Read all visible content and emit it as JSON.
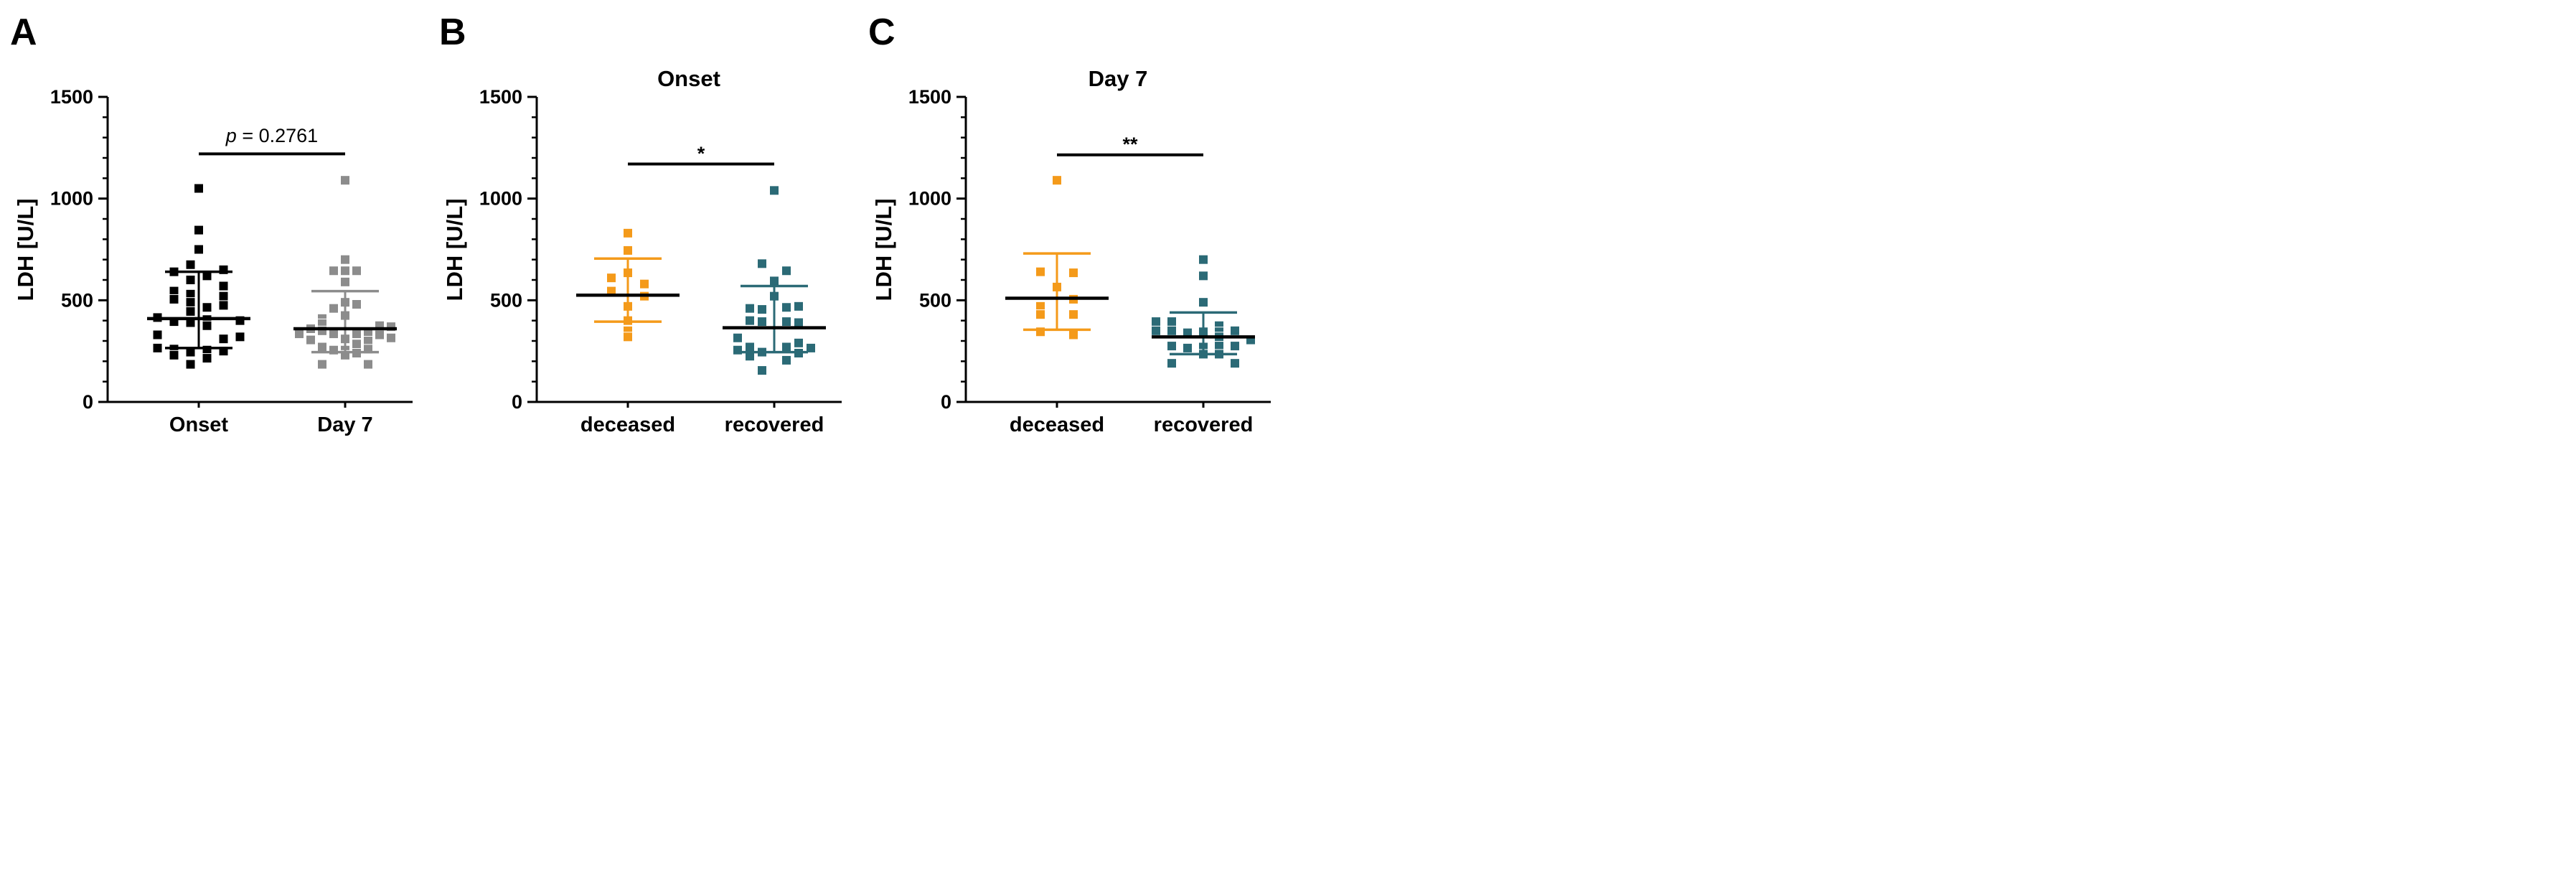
{
  "figure": {
    "background": "#ffffff",
    "axis_color": "#000000",
    "marker_colors": {
      "black": "#000000",
      "gray": "#8C8C8C",
      "orange": "#F49A1A",
      "teal": "#2B6A76"
    }
  },
  "chart_data": [
    {
      "type": "scatter",
      "label": "A",
      "title": "",
      "ylabel": "LDH [U/L]",
      "xlabel": "",
      "ylim": [
        0,
        1500
      ],
      "yticks": [
        0,
        500,
        1000,
        1500
      ],
      "minor_tick_step": 100,
      "grid": false,
      "legend": "none",
      "categories": [
        "Onset",
        "Day 7"
      ],
      "significance": {
        "prefix": "p",
        "text": " = 0.2761",
        "kind": "pvalue",
        "bar_value": 1220,
        "text_value": 1310
      },
      "groups": [
        {
          "name": "Onset",
          "color": "#000000",
          "line_color": "#000000",
          "median_color": "#000000",
          "median": 410,
          "q1": 265,
          "q3": 640,
          "step": 23,
          "points": [
            [
              1050,
              0
            ],
            [
              845,
              0
            ],
            [
              750,
              0
            ],
            [
              675,
              -0.5
            ],
            [
              650,
              1.5
            ],
            [
              640,
              -1.5
            ],
            [
              620,
              0.5
            ],
            [
              600,
              -0.5
            ],
            [
              570,
              1.5
            ],
            [
              545,
              -1.5
            ],
            [
              530,
              -0.5
            ],
            [
              520,
              1.5
            ],
            [
              505,
              -1.5
            ],
            [
              490,
              -0.5
            ],
            [
              475,
              1.5
            ],
            [
              465,
              0.5
            ],
            [
              445,
              -0.5
            ],
            [
              415,
              -2.5
            ],
            [
              405,
              0.5
            ],
            [
              400,
              2.5
            ],
            [
              395,
              -1.5
            ],
            [
              390,
              -0.5
            ],
            [
              375,
              0.5
            ],
            [
              330,
              -2.5
            ],
            [
              320,
              2.5
            ],
            [
              310,
              1.5
            ],
            [
              265,
              -2.5
            ],
            [
              260,
              -1.5
            ],
            [
              255,
              0.5
            ],
            [
              250,
              1.5
            ],
            [
              245,
              -0.5
            ],
            [
              230,
              -1.5
            ],
            [
              215,
              0.5
            ],
            [
              185,
              -0.5
            ]
          ]
        },
        {
          "name": "Day 7",
          "color": "#8C8C8C",
          "line_color": "#8C8C8C",
          "median_color": "#000000",
          "median": 360,
          "q1": 245,
          "q3": 545,
          "step": 16,
          "points": [
            [
              1090,
              0
            ],
            [
              700,
              0
            ],
            [
              645,
              -1
            ],
            [
              645,
              0
            ],
            [
              645,
              1
            ],
            [
              590,
              0
            ],
            [
              490,
              0
            ],
            [
              480,
              1
            ],
            [
              460,
              -1
            ],
            [
              425,
              0
            ],
            [
              410,
              -2
            ],
            [
              385,
              -2
            ],
            [
              375,
              3
            ],
            [
              370,
              4
            ],
            [
              360,
              -3
            ],
            [
              350,
              -2
            ],
            [
              345,
              2
            ],
            [
              335,
              -4
            ],
            [
              335,
              -1
            ],
            [
              335,
              1
            ],
            [
              330,
              3
            ],
            [
              315,
              4
            ],
            [
              310,
              0
            ],
            [
              305,
              -3
            ],
            [
              300,
              2
            ],
            [
              285,
              1
            ],
            [
              270,
              -2
            ],
            [
              260,
              2
            ],
            [
              255,
              -1
            ],
            [
              255,
              0
            ],
            [
              240,
              1
            ],
            [
              230,
              0
            ],
            [
              185,
              -2
            ],
            [
              185,
              2
            ]
          ]
        }
      ]
    },
    {
      "type": "scatter",
      "label": "B",
      "title": "Onset",
      "ylabel": "LDH [U/L]",
      "xlabel": "",
      "ylim": [
        0,
        1500
      ],
      "yticks": [
        0,
        500,
        1000,
        1500
      ],
      "minor_tick_step": 100,
      "grid": false,
      "legend": "none",
      "categories": [
        "deceased",
        "recovered"
      ],
      "significance": {
        "prefix": "",
        "text": "*",
        "kind": "stars",
        "bar_value": 1170,
        "text_value": 1245
      },
      "groups": [
        {
          "name": "deceased",
          "color": "#F49A1A",
          "line_color": "#F49A1A",
          "median_color": "#000000",
          "median": 525,
          "q1": 395,
          "q3": 705,
          "step": 23,
          "points": [
            [
              830,
              0
            ],
            [
              745,
              0
            ],
            [
              635,
              0
            ],
            [
              610,
              -1
            ],
            [
              580,
              1
            ],
            [
              545,
              -1
            ],
            [
              520,
              1
            ],
            [
              470,
              0
            ],
            [
              400,
              0
            ],
            [
              350,
              0
            ],
            [
              320,
              0
            ]
          ]
        },
        {
          "name": "recovered",
          "color": "#2B6A76",
          "line_color": "#2B6A76",
          "median_color": "#000000",
          "median": 365,
          "q1": 245,
          "q3": 570,
          "step": 17,
          "points": [
            [
              1040,
              0
            ],
            [
              680,
              -1
            ],
            [
              645,
              1
            ],
            [
              595,
              0
            ],
            [
              520,
              0
            ],
            [
              460,
              -2
            ],
            [
              455,
              -1
            ],
            [
              465,
              1
            ],
            [
              470,
              2
            ],
            [
              400,
              -2
            ],
            [
              395,
              -1
            ],
            [
              395,
              1
            ],
            [
              390,
              2
            ],
            [
              315,
              -3
            ],
            [
              255,
              -3
            ],
            [
              270,
              -2
            ],
            [
              225,
              -2
            ],
            [
              245,
              -1
            ],
            [
              155,
              -1
            ],
            [
              270,
              1
            ],
            [
              205,
              1
            ],
            [
              290,
              2
            ],
            [
              240,
              2
            ],
            [
              265,
              3
            ]
          ]
        }
      ]
    },
    {
      "type": "scatter",
      "label": "C",
      "title": "Day 7",
      "ylabel": "LDH [U/L]",
      "xlabel": "",
      "ylim": [
        0,
        1500
      ],
      "yticks": [
        0,
        500,
        1000,
        1500
      ],
      "minor_tick_step": 100,
      "grid": false,
      "legend": "none",
      "categories": [
        "deceased",
        "recovered"
      ],
      "significance": {
        "prefix": "",
        "text": "**",
        "kind": "stars",
        "bar_value": 1215,
        "text_value": 1290
      },
      "groups": [
        {
          "name": "deceased",
          "color": "#F49A1A",
          "line_color": "#F49A1A",
          "median_color": "#000000",
          "median": 510,
          "q1": 355,
          "q3": 730,
          "step": 23,
          "points": [
            [
              1090,
              0
            ],
            [
              640,
              -1
            ],
            [
              635,
              1
            ],
            [
              565,
              0
            ],
            [
              505,
              1
            ],
            [
              470,
              -1
            ],
            [
              430,
              -1
            ],
            [
              430,
              1
            ],
            [
              345,
              -1
            ],
            [
              330,
              1
            ]
          ]
        },
        {
          "name": "recovered",
          "color": "#2B6A76",
          "line_color": "#2B6A76",
          "median_color": "#000000",
          "median": 320,
          "q1": 235,
          "q3": 440,
          "step": 22,
          "points": [
            [
              700,
              0
            ],
            [
              620,
              0
            ],
            [
              490,
              0
            ],
            [
              395,
              -3
            ],
            [
              350,
              -3
            ],
            [
              395,
              -2
            ],
            [
              350,
              -2
            ],
            [
              275,
              -2
            ],
            [
              190,
              -2
            ],
            [
              340,
              -1
            ],
            [
              265,
              -1
            ],
            [
              345,
              0
            ],
            [
              270,
              0
            ],
            [
              235,
              0
            ],
            [
              375,
              1
            ],
            [
              345,
              1
            ],
            [
              320,
              1
            ],
            [
              275,
              1
            ],
            [
              235,
              1
            ],
            [
              350,
              2
            ],
            [
              275,
              2
            ],
            [
              190,
              2
            ],
            [
              305,
              3
            ]
          ]
        }
      ]
    }
  ]
}
